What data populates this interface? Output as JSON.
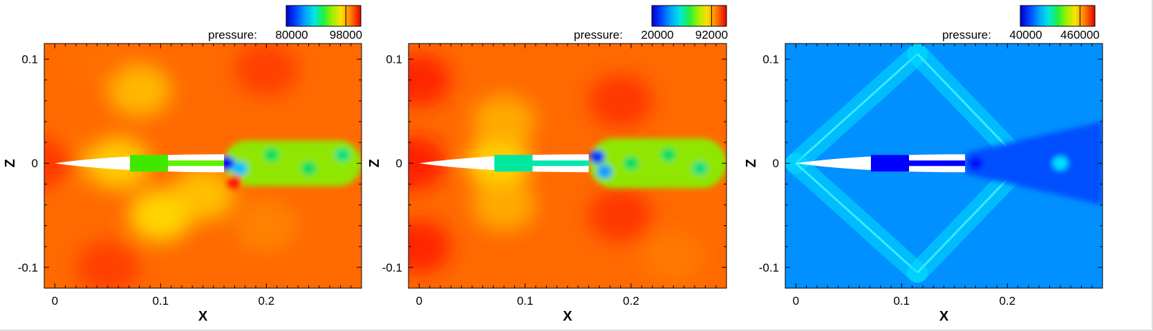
{
  "chart_data": [
    {
      "type": "heatmap",
      "title": "",
      "xlabel": "X",
      "ylabel": "Z",
      "xlim": [
        -0.01,
        0.29
      ],
      "ylim": [
        -0.12,
        0.115
      ],
      "xticks": [
        "0",
        "0.1",
        "0.2"
      ],
      "yticks": [
        "-0.1",
        "0",
        "0.1"
      ],
      "colorbar": {
        "label": "pressure:",
        "min_label": "80000",
        "max_label": "98000"
      },
      "background_color": "#ff6a00",
      "field": [
        {
          "x": 0.0,
          "z": 0.0,
          "color": "#ff9a10"
        },
        {
          "x": 0.06,
          "z": 0.0,
          "color": "#ffd400"
        },
        {
          "x": 0.08,
          "z": 0.07,
          "color": "#ffc000"
        },
        {
          "x": 0.1,
          "z": -0.05,
          "color": "#ffe000"
        },
        {
          "x": 0.14,
          "z": -0.03,
          "color": "#ffc800"
        },
        {
          "x": 0.05,
          "z": -0.1,
          "color": "#ff3a00"
        },
        {
          "x": 0.04,
          "z": 0.1,
          "color": "#ff7000"
        },
        {
          "x": 0.2,
          "z": 0.09,
          "color": "#ff3a00"
        },
        {
          "x": 0.2,
          "z": -0.06,
          "color": "#ff8400"
        },
        {
          "x": -0.008,
          "z": 0.0,
          "color": "#ff3000"
        }
      ],
      "wake": {
        "x_start": 0.16,
        "x_end": 0.29,
        "half_width": 0.022,
        "color": "#8fe600",
        "blobs": [
          {
            "x": 0.163,
            "z": 0.0,
            "color": "#0000ff"
          },
          {
            "x": 0.175,
            "z": -0.005,
            "color": "#00c0ff"
          },
          {
            "x": 0.205,
            "z": 0.008,
            "color": "#00e060"
          },
          {
            "x": 0.24,
            "z": -0.005,
            "color": "#00e060"
          },
          {
            "x": 0.272,
            "z": 0.008,
            "color": "#00e080"
          },
          {
            "x": 0.17,
            "z": -0.018,
            "color": "#ff1a00"
          }
        ]
      },
      "body_insert_color": "#40e800",
      "channel_color": "#60f000"
    },
    {
      "type": "heatmap",
      "title": "",
      "xlabel": "X",
      "ylabel": "Z",
      "xlim": [
        -0.01,
        0.29
      ],
      "ylim": [
        -0.12,
        0.115
      ],
      "xticks": [
        "0",
        "0.1",
        "0.2"
      ],
      "yticks": [
        "-0.1",
        "0",
        "0.1"
      ],
      "colorbar": {
        "label": "pressure:",
        "min_label": "20000",
        "max_label": "92000"
      },
      "background_color": "#ff6a00",
      "field": [
        {
          "x": -0.005,
          "z": 0.0,
          "color": "#ff1800"
        },
        {
          "x": 0.0,
          "z": 0.08,
          "color": "#ff2000"
        },
        {
          "x": 0.0,
          "z": -0.08,
          "color": "#ff2000"
        },
        {
          "x": 0.075,
          "z": 0.0,
          "color": "#ffe000"
        },
        {
          "x": 0.08,
          "z": 0.04,
          "color": "#ffb000"
        },
        {
          "x": 0.08,
          "z": -0.04,
          "color": "#ffb000"
        },
        {
          "x": 0.19,
          "z": 0.06,
          "color": "#ff3000"
        },
        {
          "x": 0.19,
          "z": -0.05,
          "color": "#ff3000"
        },
        {
          "x": 0.24,
          "z": -0.09,
          "color": "#ff7a00"
        }
      ],
      "wake": {
        "x_start": 0.16,
        "x_end": 0.29,
        "half_width": 0.024,
        "color": "#8fe600",
        "blobs": [
          {
            "x": 0.168,
            "z": 0.006,
            "color": "#0030ff"
          },
          {
            "x": 0.175,
            "z": -0.008,
            "color": "#00a0ff"
          },
          {
            "x": 0.2,
            "z": 0.0,
            "color": "#00e060"
          },
          {
            "x": 0.235,
            "z": 0.008,
            "color": "#00e060"
          },
          {
            "x": 0.265,
            "z": -0.005,
            "color": "#00e080"
          }
        ]
      },
      "body_insert_color": "#00e8a0",
      "channel_color": "#00e8b0"
    },
    {
      "type": "heatmap",
      "title": "",
      "xlabel": "X",
      "ylabel": "Z",
      "xlim": [
        -0.01,
        0.29
      ],
      "ylim": [
        -0.12,
        0.115
      ],
      "xticks": [
        "0",
        "0.1",
        "0.2"
      ],
      "yticks": [
        "-0.1",
        "0",
        "0.1"
      ],
      "colorbar": {
        "label": "pressure:",
        "min_label": "40000",
        "max_label": "460000"
      },
      "background_color": "#0090ff",
      "shock_color": "#00e0ff",
      "shocks": [
        {
          "from": [
            0.0,
            0.0
          ],
          "to": [
            0.115,
            0.105
          ]
        },
        {
          "from": [
            0.0,
            0.0
          ],
          "to": [
            0.115,
            -0.105
          ]
        },
        {
          "from": [
            0.115,
            0.105
          ],
          "to": [
            0.205,
            0.01
          ]
        },
        {
          "from": [
            0.115,
            -0.105
          ],
          "to": [
            0.205,
            -0.01
          ]
        }
      ],
      "wake": {
        "x_start": 0.16,
        "x_end": 0.29,
        "half_width": 0.03,
        "color": "#0050ff",
        "blobs": [
          {
            "x": 0.17,
            "z": 0.0,
            "color": "#0010ff"
          },
          {
            "x": 0.25,
            "z": 0.0,
            "color": "#00e0ff"
          }
        ]
      },
      "body_insert_color": "#0000ff",
      "channel_color": "#0000ff"
    }
  ]
}
